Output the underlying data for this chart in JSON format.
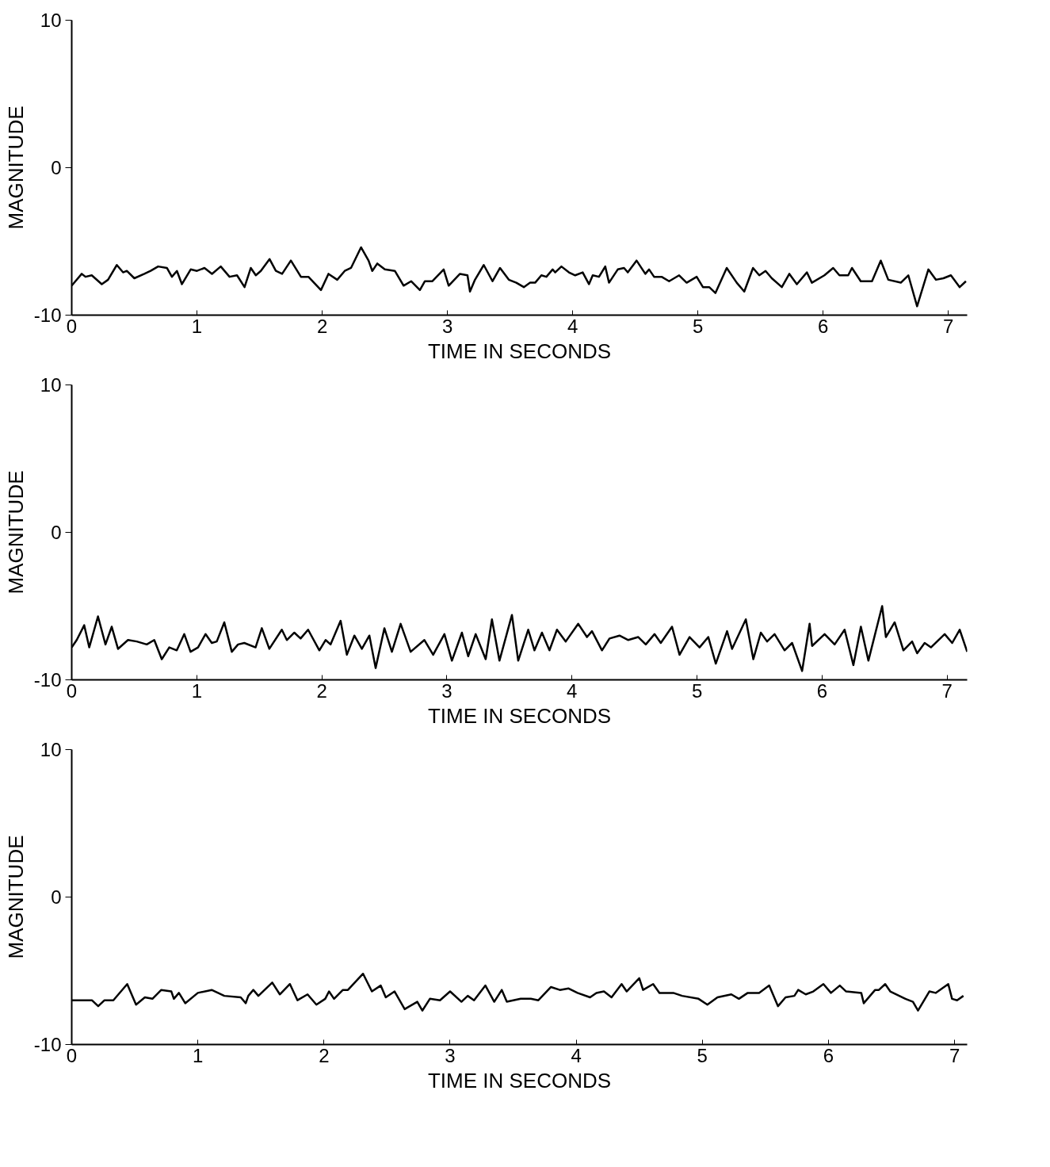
{
  "chart_data": [
    {
      "type": "line",
      "xlabel": "TIME IN SECONDS",
      "ylabel": "MAGNITUDE",
      "xlim": [
        0,
        7.15
      ],
      "ylim": [
        -10,
        10
      ],
      "xticks": [
        0,
        1,
        2,
        3,
        4,
        5,
        6,
        7
      ],
      "yticks": [
        -10,
        0,
        10
      ],
      "grid": false,
      "x": [
        0,
        0.08,
        0.11,
        0.16,
        0.24,
        0.29,
        0.36,
        0.41,
        0.44,
        0.5,
        0.58,
        0.63,
        0.69,
        0.76,
        0.8,
        0.84,
        0.88,
        0.95,
        1.0,
        1.06,
        1.12,
        1.19,
        1.26,
        1.32,
        1.38,
        1.43,
        1.47,
        1.51,
        1.58,
        1.63,
        1.68,
        1.75,
        1.83,
        1.89,
        1.99,
        2.05,
        2.12,
        2.18,
        2.23,
        2.31,
        2.37,
        2.4,
        2.44,
        2.5,
        2.58,
        2.65,
        2.71,
        2.78,
        2.82,
        2.88,
        2.97,
        3.01,
        3.1,
        3.16,
        3.18,
        3.22,
        3.29,
        3.36,
        3.42,
        3.49,
        3.55,
        3.61,
        3.66,
        3.7,
        3.75,
        3.79,
        3.84,
        3.86,
        3.91,
        3.97,
        4.02,
        4.08,
        4.13,
        4.16,
        4.21,
        4.26,
        4.29,
        4.36,
        4.41,
        4.44,
        4.51,
        4.58,
        4.61,
        4.65,
        4.71,
        4.77,
        4.85,
        4.91,
        4.99,
        5.04,
        5.09,
        5.14,
        5.23,
        5.31,
        5.37,
        5.44,
        5.49,
        5.54,
        5.59,
        5.67,
        5.73,
        5.79,
        5.87,
        5.91,
        6.01,
        6.08,
        6.13,
        6.2,
        6.23,
        6.3,
        6.39,
        6.46,
        6.52,
        6.62,
        6.68,
        6.75,
        6.84,
        6.9,
        6.96,
        7.02,
        7.09,
        7.14
      ],
      "series": [
        {
          "color": "#000000",
          "values": [
            -8.0,
            -7.2,
            -7.4,
            -7.3,
            -7.9,
            -7.6,
            -6.6,
            -7.1,
            -7.0,
            -7.5,
            -7.2,
            -7.0,
            -6.7,
            -6.8,
            -7.4,
            -7.0,
            -7.9,
            -6.9,
            -7.0,
            -6.8,
            -7.2,
            -6.7,
            -7.4,
            -7.3,
            -8.1,
            -6.8,
            -7.3,
            -7.0,
            -6.2,
            -7.0,
            -7.2,
            -6.3,
            -7.4,
            -7.4,
            -8.3,
            -7.2,
            -7.6,
            -7.0,
            -6.8,
            -5.4,
            -6.3,
            -7.0,
            -6.5,
            -6.9,
            -7.0,
            -8.0,
            -7.7,
            -8.3,
            -7.7,
            -7.7,
            -6.9,
            -8.0,
            -7.2,
            -7.3,
            -8.4,
            -7.6,
            -6.6,
            -7.7,
            -6.8,
            -7.6,
            -7.8,
            -8.1,
            -7.8,
            -7.8,
            -7.3,
            -7.4,
            -6.9,
            -7.1,
            -6.7,
            -7.1,
            -7.3,
            -7.1,
            -7.9,
            -7.3,
            -7.4,
            -6.7,
            -7.8,
            -6.9,
            -6.8,
            -7.1,
            -6.3,
            -7.2,
            -6.9,
            -7.4,
            -7.4,
            -7.7,
            -7.3,
            -7.8,
            -7.4,
            -8.1,
            -8.1,
            -8.5,
            -6.8,
            -7.8,
            -8.4,
            -6.8,
            -7.3,
            -7.0,
            -7.5,
            -8.1,
            -7.2,
            -7.9,
            -7.1,
            -7.8,
            -7.3,
            -6.8,
            -7.3,
            -7.3,
            -6.8,
            -7.7,
            -7.7,
            -6.3,
            -7.6,
            -7.8,
            -7.3,
            -9.4,
            -6.9,
            -7.6,
            -7.5,
            -7.3,
            -8.1,
            -7.7
          ]
        }
      ]
    },
    {
      "type": "line",
      "xlabel": "TIME IN SECONDS",
      "ylabel": "MAGNITUDE",
      "xlim": [
        0,
        7.16
      ],
      "ylim": [
        -10,
        10
      ],
      "xticks": [
        0,
        1,
        2,
        3,
        4,
        5,
        6,
        7
      ],
      "yticks": [
        -10,
        0,
        10
      ],
      "grid": false,
      "x": [
        0.0,
        0.04,
        0.1,
        0.14,
        0.21,
        0.27,
        0.32,
        0.37,
        0.45,
        0.52,
        0.6,
        0.66,
        0.72,
        0.78,
        0.84,
        0.9,
        0.95,
        1.01,
        1.07,
        1.12,
        1.16,
        1.22,
        1.28,
        1.33,
        1.38,
        1.47,
        1.52,
        1.58,
        1.68,
        1.72,
        1.78,
        1.83,
        1.89,
        1.98,
        2.03,
        2.07,
        2.15,
        2.2,
        2.26,
        2.32,
        2.38,
        2.43,
        2.5,
        2.56,
        2.63,
        2.71,
        2.82,
        2.89,
        2.98,
        3.04,
        3.12,
        3.17,
        3.23,
        3.31,
        3.36,
        3.42,
        3.52,
        3.57,
        3.65,
        3.7,
        3.76,
        3.82,
        3.88,
        3.95,
        4.05,
        4.12,
        4.16,
        4.24,
        4.3,
        4.38,
        4.45,
        4.53,
        4.59,
        4.66,
        4.71,
        4.8,
        4.86,
        4.94,
        5.02,
        5.09,
        5.15,
        5.24,
        5.28,
        5.39,
        5.45,
        5.51,
        5.56,
        5.62,
        5.7,
        5.76,
        5.84,
        5.9,
        5.92,
        6.02,
        6.1,
        6.18,
        6.25,
        6.31,
        6.37,
        6.48,
        6.51,
        6.58,
        6.65,
        6.72,
        6.76,
        6.82,
        6.87,
        6.98,
        7.04,
        7.1,
        7.16
      ],
      "series": [
        {
          "color": "#000000",
          "values": [
            -7.8,
            -7.3,
            -6.3,
            -7.8,
            -5.7,
            -7.6,
            -6.4,
            -7.9,
            -7.3,
            -7.4,
            -7.6,
            -7.3,
            -8.6,
            -7.8,
            -8.0,
            -6.9,
            -8.1,
            -7.8,
            -6.9,
            -7.5,
            -7.4,
            -6.1,
            -8.1,
            -7.6,
            -7.5,
            -7.8,
            -6.5,
            -7.9,
            -6.6,
            -7.3,
            -6.8,
            -7.2,
            -6.6,
            -8.0,
            -7.3,
            -7.6,
            -6.0,
            -8.3,
            -7.0,
            -7.9,
            -7.0,
            -9.2,
            -6.5,
            -8.1,
            -6.2,
            -8.1,
            -7.3,
            -8.3,
            -6.9,
            -8.7,
            -6.8,
            -8.4,
            -6.9,
            -8.6,
            -5.9,
            -8.7,
            -5.6,
            -8.7,
            -6.6,
            -8.0,
            -6.8,
            -8.0,
            -6.6,
            -7.4,
            -6.2,
            -7.1,
            -6.7,
            -8.0,
            -7.2,
            -7.0,
            -7.3,
            -7.1,
            -7.6,
            -6.9,
            -7.5,
            -6.4,
            -8.3,
            -7.1,
            -7.8,
            -7.1,
            -8.9,
            -6.7,
            -7.9,
            -5.9,
            -8.6,
            -6.8,
            -7.4,
            -6.9,
            -8.0,
            -7.5,
            -9.4,
            -6.2,
            -7.7,
            -6.9,
            -7.6,
            -6.6,
            -9.0,
            -6.4,
            -8.7,
            -5.0,
            -7.1,
            -6.1,
            -8.0,
            -7.4,
            -8.2,
            -7.5,
            -7.8,
            -6.9,
            -7.5,
            -6.6,
            -8.1
          ]
        }
      ]
    },
    {
      "type": "line",
      "xlabel": "TIME IN SECONDS",
      "ylabel": "MAGNITUDE",
      "xlim": [
        0,
        7.1
      ],
      "ylim": [
        -10,
        10
      ],
      "xticks": [
        0,
        1,
        2,
        3,
        4,
        5,
        6,
        7
      ],
      "yticks": [
        -10,
        0,
        10
      ],
      "grid": false,
      "x": [
        0,
        0.16,
        0.21,
        0.26,
        0.33,
        0.44,
        0.51,
        0.58,
        0.64,
        0.71,
        0.79,
        0.81,
        0.85,
        0.9,
        1.0,
        1.11,
        1.21,
        1.34,
        1.38,
        1.4,
        1.44,
        1.48,
        1.59,
        1.65,
        1.73,
        1.79,
        1.87,
        1.94,
        2.01,
        2.04,
        2.08,
        2.15,
        2.19,
        2.31,
        2.38,
        2.45,
        2.49,
        2.56,
        2.64,
        2.74,
        2.78,
        2.84,
        2.92,
        3.0,
        3.09,
        3.14,
        3.19,
        3.28,
        3.35,
        3.41,
        3.45,
        3.56,
        3.64,
        3.7,
        3.8,
        3.87,
        3.94,
        4.01,
        4.11,
        4.16,
        4.22,
        4.28,
        4.36,
        4.4,
        4.5,
        4.53,
        4.61,
        4.66,
        4.77,
        4.84,
        4.97,
        5.04,
        5.12,
        5.23,
        5.29,
        5.36,
        5.45,
        5.53,
        5.6,
        5.66,
        5.73,
        5.76,
        5.82,
        5.88,
        5.96,
        6.02,
        6.09,
        6.14,
        6.26,
        6.28,
        6.37,
        6.4,
        6.45,
        6.49,
        6.61,
        6.67,
        6.71,
        6.8,
        6.85,
        6.95,
        6.98,
        7.02,
        7.07
      ],
      "series": [
        {
          "color": "#000000",
          "values": [
            -7.0,
            -7.0,
            -7.4,
            -7.0,
            -7.0,
            -5.9,
            -7.3,
            -6.8,
            -6.9,
            -6.3,
            -6.4,
            -6.9,
            -6.5,
            -7.2,
            -6.5,
            -6.3,
            -6.7,
            -6.8,
            -7.2,
            -6.7,
            -6.3,
            -6.7,
            -5.8,
            -6.6,
            -5.9,
            -7.0,
            -6.6,
            -7.3,
            -6.9,
            -6.4,
            -6.9,
            -6.3,
            -6.3,
            -5.2,
            -6.4,
            -6.0,
            -6.8,
            -6.4,
            -7.6,
            -7.1,
            -7.7,
            -6.9,
            -7.0,
            -6.4,
            -7.1,
            -6.7,
            -7.0,
            -6.0,
            -7.1,
            -6.3,
            -7.1,
            -6.9,
            -6.9,
            -7.0,
            -6.1,
            -6.3,
            -6.2,
            -6.5,
            -6.8,
            -6.5,
            -6.4,
            -6.8,
            -5.9,
            -6.4,
            -5.5,
            -6.3,
            -5.9,
            -6.5,
            -6.5,
            -6.7,
            -6.9,
            -7.3,
            -6.8,
            -6.6,
            -6.9,
            -6.5,
            -6.5,
            -6.0,
            -7.4,
            -6.8,
            -6.7,
            -6.3,
            -6.6,
            -6.4,
            -5.9,
            -6.5,
            -6.0,
            -6.4,
            -6.5,
            -7.2,
            -6.3,
            -6.3,
            -5.9,
            -6.4,
            -6.9,
            -7.1,
            -7.7,
            -6.4,
            -6.5,
            -5.9,
            -6.9,
            -7.0,
            -6.7
          ]
        }
      ]
    }
  ]
}
